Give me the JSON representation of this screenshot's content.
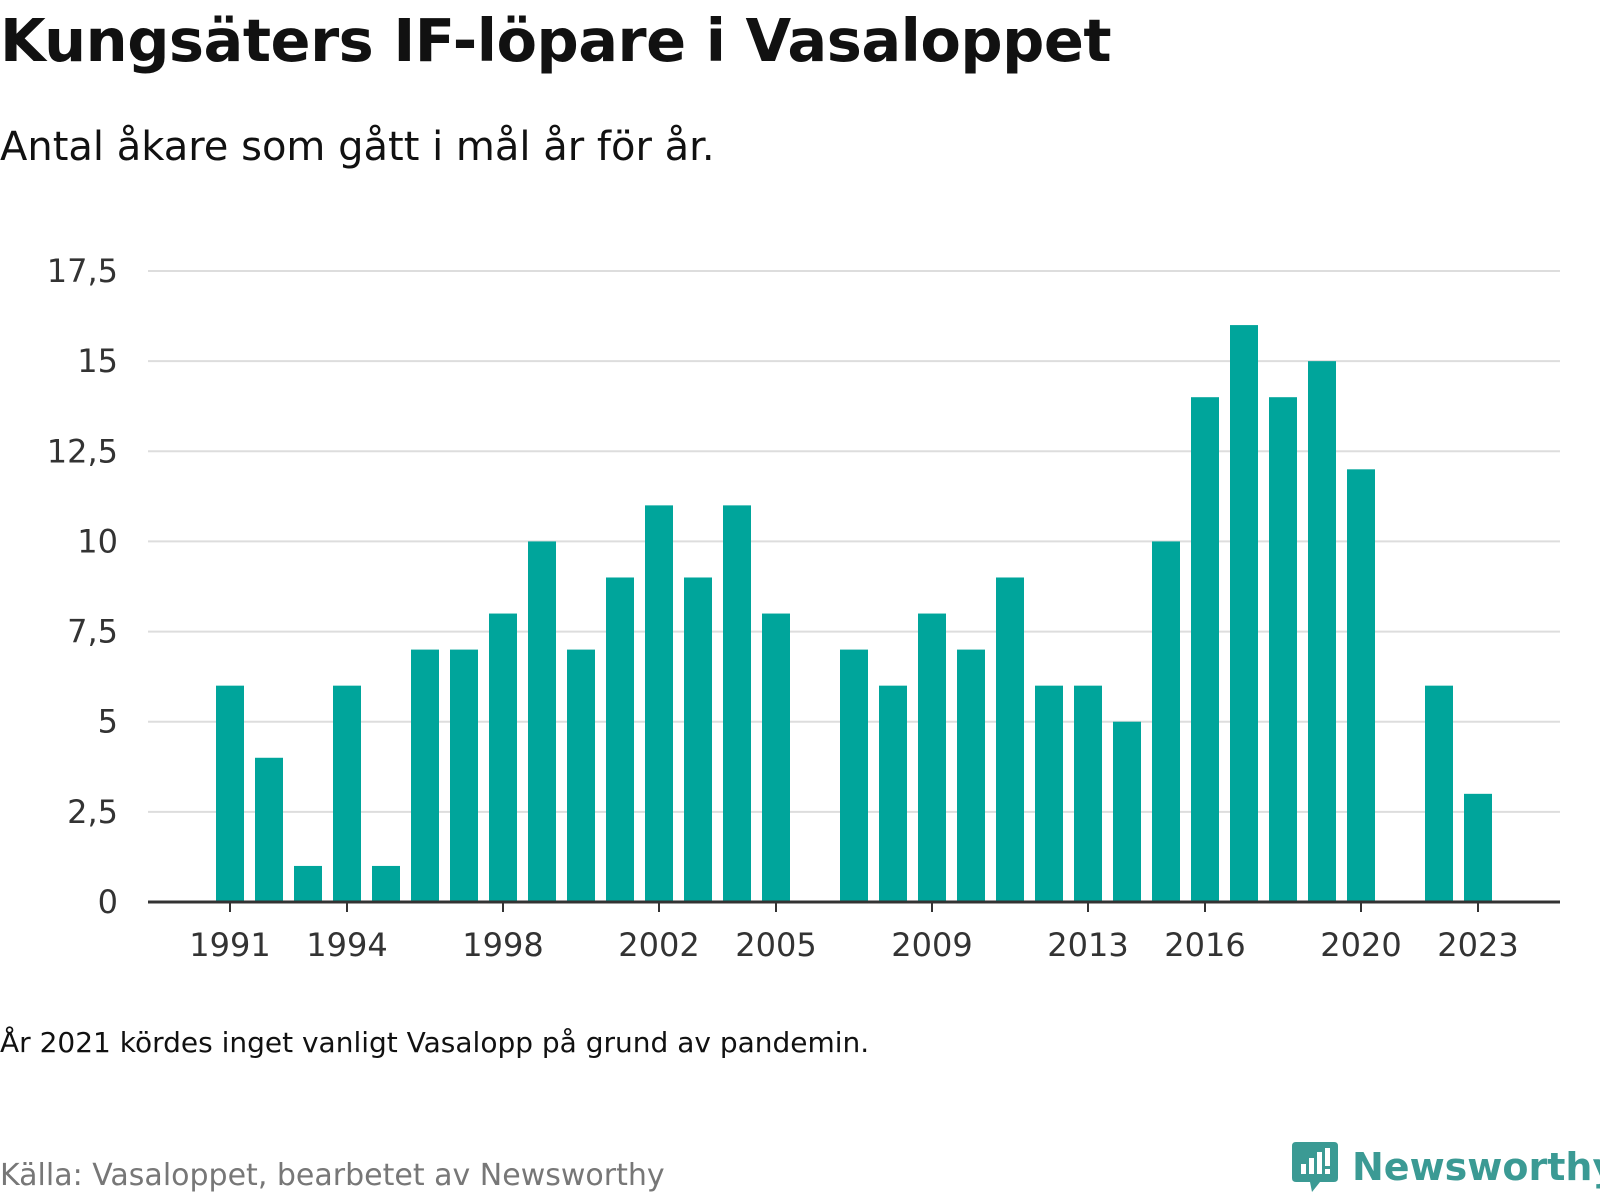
{
  "title": "Kungsäters IF-löpare i Vasaloppet",
  "subtitle": "Antal åkare som gått i mål år för år.",
  "note": "År 2021 kördes inget vanligt Vasalopp på grund av pandemin.",
  "source": "Källa: Vasaloppet, bearbetet av Newsworthy",
  "logo_text": "Newsworthy",
  "colors": {
    "bar": "#00a59b",
    "grid": "#dddddd",
    "axis": "#333333",
    "logo": "#3b9a94"
  },
  "chart_data": {
    "type": "bar",
    "x": [
      1991,
      1992,
      1993,
      1994,
      1995,
      1996,
      1997,
      1998,
      1999,
      2000,
      2001,
      2002,
      2003,
      2004,
      2005,
      2006,
      2007,
      2008,
      2009,
      2010,
      2011,
      2012,
      2013,
      2014,
      2015,
      2016,
      2017,
      2018,
      2019,
      2020,
      2021,
      2022,
      2023
    ],
    "values": [
      6,
      4,
      1,
      6,
      1,
      7,
      7,
      8,
      10,
      7,
      9,
      11,
      9,
      11,
      8,
      0,
      7,
      6,
      8,
      7,
      9,
      6,
      6,
      5,
      10,
      14,
      16,
      14,
      15,
      12,
      0,
      6,
      3
    ],
    "x_tick_labels": [
      "1991",
      "1994",
      "1998",
      "2002",
      "2005",
      "2009",
      "2013",
      "2016",
      "2020",
      "2023"
    ],
    "y_ticks": [
      0,
      2.5,
      5,
      7.5,
      10,
      12.5,
      15,
      17.5
    ],
    "y_tick_labels": [
      "0",
      "2,5",
      "5",
      "7,5",
      "10",
      "12,5",
      "15",
      "17,5"
    ],
    "ylim": [
      0,
      17.5
    ],
    "grid": true,
    "legend": "none"
  }
}
